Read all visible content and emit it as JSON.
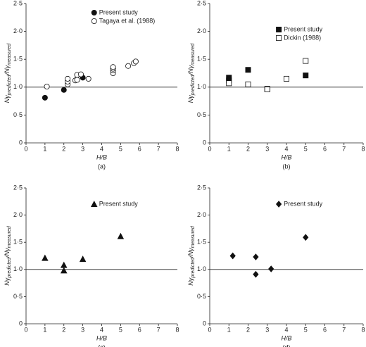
{
  "chart_data": [
    {
      "type": "scatter",
      "caption": "(a)",
      "xlabel": "H/B",
      "ylabel": [
        "Nγ",
        "predicted",
        "/Nγ",
        "measured"
      ],
      "xlim": [
        0,
        8
      ],
      "xticks": [
        0,
        1,
        2,
        3,
        4,
        5,
        6,
        7,
        8
      ],
      "ylim": [
        0,
        2.5
      ],
      "yticks": [
        0,
        {
          "value": 0.5,
          "label": "0·5"
        },
        {
          "value": 1,
          "label": "1·0"
        },
        {
          "value": 1.5,
          "label": "1·5"
        },
        {
          "value": 2,
          "label": "2·0"
        },
        {
          "value": 2.5,
          "label": "2·5"
        }
      ],
      "hline": 1,
      "series": [
        {
          "name": "Present study",
          "marker": "circle",
          "filled": true,
          "color": "#111",
          "x": [
            1,
            2,
            3
          ],
          "values": [
            0.81,
            0.95,
            1.17
          ]
        },
        {
          "name": "Tagaya et al. (1988)",
          "marker": "circle",
          "filled": false,
          "color": "#111",
          "x": [
            1.1,
            2.2,
            2.2,
            2.2,
            2.6,
            2.7,
            2.7,
            2.9,
            3.3,
            4.6,
            4.6,
            4.6,
            4.6,
            5.4,
            5.7,
            5.8
          ],
          "values": [
            1.01,
            1.05,
            1.1,
            1.15,
            1.12,
            1.13,
            1.22,
            1.23,
            1.15,
            1.25,
            1.3,
            1.33,
            1.36,
            1.38,
            1.43,
            1.46
          ]
        }
      ]
    },
    {
      "type": "scatter",
      "caption": "(b)",
      "xlabel": "H/B",
      "ylabel": [
        "Nγ",
        "predicted",
        "/Nγ",
        "measured"
      ],
      "xlim": [
        0,
        8
      ],
      "xticks": [
        0,
        1,
        2,
        3,
        4,
        5,
        6,
        7,
        8
      ],
      "ylim": [
        0,
        2.5
      ],
      "yticks": [
        0,
        {
          "value": 0.5,
          "label": "0·5"
        },
        {
          "value": 1,
          "label": "1·0"
        },
        {
          "value": 1.5,
          "label": "1·5"
        },
        {
          "value": 2,
          "label": "2·0"
        },
        {
          "value": 2.5,
          "label": "2·5"
        }
      ],
      "hline": 1,
      "series": [
        {
          "name": "Present study",
          "marker": "square",
          "filled": true,
          "color": "#111",
          "x": [
            1,
            1,
            2,
            3,
            5
          ],
          "values": [
            1.12,
            1.17,
            1.31,
            0.97,
            1.21
          ]
        },
        {
          "name": "Dickin (1988)",
          "marker": "square",
          "filled": false,
          "color": "#111",
          "x": [
            1,
            2,
            3,
            4,
            5
          ],
          "values": [
            1.07,
            1.05,
            0.96,
            1.15,
            1.47
          ]
        }
      ]
    },
    {
      "type": "scatter",
      "caption": "(c)",
      "xlabel": "H/B",
      "ylabel": [
        "Nγ",
        "predicted",
        "/Nγ",
        "measured"
      ],
      "xlim": [
        0,
        8
      ],
      "xticks": [
        0,
        1,
        2,
        3,
        4,
        5,
        6,
        7,
        8
      ],
      "ylim": [
        0,
        2.5
      ],
      "yticks": [
        0,
        {
          "value": 0.5,
          "label": "0·5"
        },
        {
          "value": 1,
          "label": "1·0"
        },
        {
          "value": 1.5,
          "label": "1·5"
        },
        {
          "value": 2,
          "label": "2·0"
        },
        {
          "value": 2.5,
          "label": "2·5"
        }
      ],
      "hline": 1,
      "series": [
        {
          "name": "Present study",
          "marker": "triangle",
          "filled": true,
          "color": "#111",
          "x": [
            1,
            2,
            2,
            3,
            5
          ],
          "values": [
            1.21,
            1.08,
            0.98,
            1.19,
            1.61
          ]
        }
      ]
    },
    {
      "type": "scatter",
      "caption": "(d)",
      "xlabel": "H/B",
      "ylabel": [
        "Nγ",
        "predicted",
        "/Nγ",
        "measured"
      ],
      "xlim": [
        0,
        8
      ],
      "xticks": [
        0,
        1,
        2,
        3,
        4,
        5,
        6,
        7,
        8
      ],
      "ylim": [
        0,
        2.5
      ],
      "yticks": [
        0,
        {
          "value": 0.5,
          "label": "0·5"
        },
        {
          "value": 1,
          "label": "1·0"
        },
        {
          "value": 1.5,
          "label": "1·5"
        },
        {
          "value": 2,
          "label": "2·0"
        },
        {
          "value": 2.5,
          "label": "2·5"
        }
      ],
      "hline": 1,
      "series": [
        {
          "name": "Present study",
          "marker": "diamond",
          "filled": true,
          "color": "#111",
          "x": [
            1.2,
            2.4,
            2.4,
            3.2,
            5
          ],
          "values": [
            1.25,
            1.23,
            0.91,
            1.01,
            1.59
          ]
        }
      ]
    }
  ]
}
